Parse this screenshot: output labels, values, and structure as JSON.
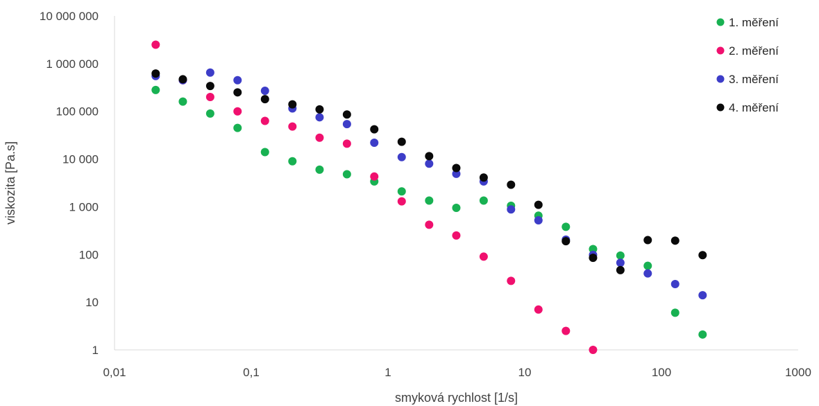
{
  "chart_data": {
    "type": "scatter",
    "title": "",
    "xlabel": "smyková rychlost [1/s]",
    "ylabel": "viskozita [Pa.s]",
    "x_scale": "log",
    "y_scale": "log",
    "xlim": [
      0.01,
      1000
    ],
    "ylim": [
      1,
      10000000
    ],
    "x_ticks": [
      "0,01",
      "0,1",
      "1",
      "10",
      "100",
      "1000"
    ],
    "y_ticks": [
      "1",
      "10",
      "100",
      "1 000",
      "10 000",
      "100 000",
      "1 000 000",
      "10 000 000"
    ],
    "grid": false,
    "legend_position": "top-right",
    "series": [
      {
        "name": "1. měření",
        "color": "#18b152",
        "points": [
          [
            0.02,
            280000
          ],
          [
            0.0316,
            160000
          ],
          [
            0.0501,
            90000
          ],
          [
            0.0794,
            45000
          ],
          [
            0.126,
            14000
          ],
          [
            0.2,
            9000
          ],
          [
            0.316,
            6000
          ],
          [
            0.501,
            4800
          ],
          [
            0.794,
            3400
          ],
          [
            1.26,
            2100
          ],
          [
            2.0,
            1350
          ],
          [
            3.16,
            950
          ],
          [
            5.01,
            1350
          ],
          [
            7.94,
            1050
          ],
          [
            12.6,
            650
          ],
          [
            20.0,
            380
          ],
          [
            31.6,
            130
          ],
          [
            50.1,
            95
          ],
          [
            79.4,
            58
          ],
          [
            126,
            6
          ],
          [
            200,
            2.1
          ]
        ]
      },
      {
        "name": "2. měření",
        "color": "#f0106e",
        "points": [
          [
            0.02,
            2500000
          ],
          [
            0.0316,
            450000
          ],
          [
            0.0501,
            200000
          ],
          [
            0.0794,
            100000
          ],
          [
            0.126,
            63000
          ],
          [
            0.2,
            48000
          ],
          [
            0.316,
            28000
          ],
          [
            0.501,
            21000
          ],
          [
            0.794,
            4300
          ],
          [
            1.26,
            1300
          ],
          [
            2.0,
            420
          ],
          [
            3.16,
            250
          ],
          [
            5.01,
            90
          ],
          [
            7.94,
            28
          ],
          [
            12.6,
            7
          ],
          [
            20.0,
            2.5
          ],
          [
            31.6,
            1.0
          ]
        ]
      },
      {
        "name": "3. měření",
        "color": "#3d3dc8",
        "points": [
          [
            0.02,
            550000
          ],
          [
            0.0316,
            450000
          ],
          [
            0.0501,
            650000
          ],
          [
            0.0794,
            450000
          ],
          [
            0.126,
            270000
          ],
          [
            0.2,
            115000
          ],
          [
            0.316,
            75000
          ],
          [
            0.501,
            54000
          ],
          [
            0.794,
            22000
          ],
          [
            1.26,
            11000
          ],
          [
            2.0,
            8000
          ],
          [
            3.16,
            4900
          ],
          [
            5.01,
            3400
          ],
          [
            7.94,
            880
          ],
          [
            12.6,
            520
          ],
          [
            20.0,
            205
          ],
          [
            31.6,
            98
          ],
          [
            50.1,
            67
          ],
          [
            79.4,
            40
          ],
          [
            126,
            24
          ],
          [
            200,
            14
          ]
        ]
      },
      {
        "name": "4. měření",
        "color": "#0a0a0a",
        "points": [
          [
            0.02,
            620000
          ],
          [
            0.0316,
            470000
          ],
          [
            0.0501,
            340000
          ],
          [
            0.0794,
            250000
          ],
          [
            0.126,
            180000
          ],
          [
            0.2,
            140000
          ],
          [
            0.316,
            110000
          ],
          [
            0.501,
            86000
          ],
          [
            0.794,
            42000
          ],
          [
            1.26,
            23000
          ],
          [
            2.0,
            11500
          ],
          [
            3.16,
            6500
          ],
          [
            5.01,
            4100
          ],
          [
            7.94,
            2900
          ],
          [
            12.6,
            1100
          ],
          [
            20.0,
            190
          ],
          [
            31.6,
            85
          ],
          [
            50.1,
            47
          ],
          [
            79.4,
            200
          ],
          [
            126,
            195
          ],
          [
            200,
            97
          ]
        ]
      }
    ]
  }
}
